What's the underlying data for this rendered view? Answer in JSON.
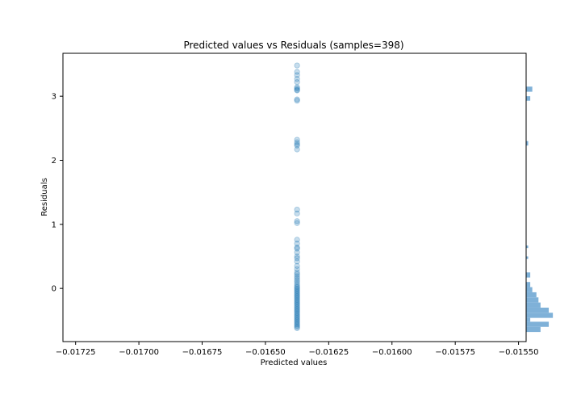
{
  "chart_data": {
    "type": "scatter",
    "title": "Predicted values vs Residuals (samples=398)",
    "xlabel": "Predicted values",
    "ylabel": "Residuals",
    "xlim": [
      -0.0173,
      -0.01547
    ],
    "ylim": [
      -0.83,
      3.67
    ],
    "xticks": [
      -0.01725,
      -0.017,
      -0.01675,
      -0.0165,
      -0.01625,
      -0.016,
      -0.01575,
      -0.0155
    ],
    "xtick_labels": [
      "−0.01725",
      "−0.01700",
      "−0.01675",
      "−0.01650",
      "−0.01625",
      "−0.01600",
      "−0.01575",
      "−0.01550"
    ],
    "yticks": [
      0,
      1,
      2,
      3
    ],
    "ytick_labels": [
      "0",
      "1",
      "2",
      "3"
    ],
    "point_color": "#1f77b4",
    "hist_color": "#7fb1d8",
    "grid": false,
    "series": [
      {
        "x_constant": -0.016375,
        "residuals": [
          3.48,
          3.38,
          3.33,
          3.27,
          3.22,
          3.14,
          3.12,
          3.1,
          3.09,
          2.95,
          2.93,
          2.32,
          2.28,
          2.25,
          2.23,
          2.17,
          1.23,
          1.17,
          1.05,
          1.02,
          0.76,
          0.7,
          0.64,
          0.62,
          0.56,
          0.5,
          0.47,
          0.42,
          0.35,
          0.3,
          0.25,
          0.22,
          0.19,
          0.16,
          0.13,
          0.1,
          0.07,
          0.04,
          0.02,
          0.0,
          -0.02,
          -0.04,
          -0.06,
          -0.08,
          -0.1,
          -0.12,
          -0.14,
          -0.16,
          -0.18,
          -0.2,
          -0.22,
          -0.24,
          -0.26,
          -0.28,
          -0.3,
          -0.32,
          -0.34,
          -0.36,
          -0.38,
          -0.4,
          -0.42,
          -0.44,
          -0.46,
          -0.48,
          -0.5,
          -0.52,
          -0.54,
          -0.56,
          -0.58,
          -0.6,
          -0.62
        ]
      }
    ],
    "marginal_histogram": {
      "orientation": "horizontal",
      "bins": [
        {
          "y0": 3.07,
          "y1": 3.15,
          "count": 3
        },
        {
          "y0": 2.93,
          "y1": 3.0,
          "count": 2
        },
        {
          "y0": 2.23,
          "y1": 2.3,
          "count": 1
        },
        {
          "y0": 0.63,
          "y1": 0.67,
          "count": 1
        },
        {
          "y0": 0.46,
          "y1": 0.5,
          "count": 1
        },
        {
          "y0": 0.17,
          "y1": 0.25,
          "count": 2
        },
        {
          "y0": 0.02,
          "y1": 0.1,
          "count": 2
        },
        {
          "y0": -0.06,
          "y1": 0.02,
          "count": 3
        },
        {
          "y0": -0.14,
          "y1": -0.06,
          "count": 5
        },
        {
          "y0": -0.22,
          "y1": -0.14,
          "count": 6
        },
        {
          "y0": -0.3,
          "y1": -0.22,
          "count": 7
        },
        {
          "y0": -0.38,
          "y1": -0.3,
          "count": 11
        },
        {
          "y0": -0.46,
          "y1": -0.38,
          "count": 13
        },
        {
          "y0": -0.52,
          "y1": -0.46,
          "count": 2
        },
        {
          "y0": -0.6,
          "y1": -0.52,
          "count": 11
        },
        {
          "y0": -0.68,
          "y1": -0.6,
          "count": 7
        }
      ]
    }
  }
}
